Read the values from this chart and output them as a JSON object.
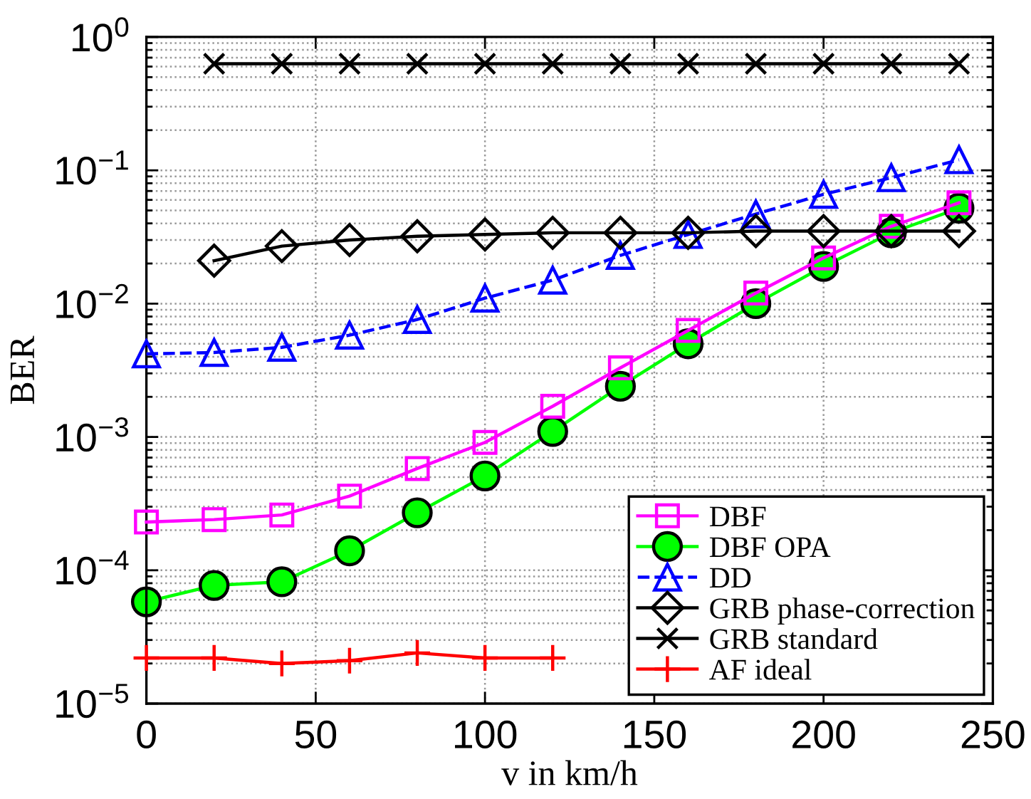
{
  "chart_data": {
    "type": "line",
    "xlabel": "v in km/h",
    "ylabel": "BER",
    "series": [
      {
        "name": "DBF",
        "color": "#ff00ff",
        "marker": "square",
        "line_style": "solid",
        "x": [
          0,
          20,
          40,
          60,
          80,
          100,
          120,
          140,
          160,
          180,
          200,
          220,
          240
        ],
        "values": [
          0.00023,
          0.00024,
          0.00026,
          0.00036,
          0.00058,
          0.00091,
          0.0017,
          0.0033,
          0.0063,
          0.012,
          0.022,
          0.038,
          0.057
        ]
      },
      {
        "name": "DBF OPA",
        "color": "#00ff00",
        "marker": "circle",
        "line_style": "solid",
        "x": [
          0,
          20,
          40,
          60,
          80,
          100,
          120,
          140,
          160,
          180,
          200,
          220,
          240
        ],
        "values": [
          5.8e-05,
          7.7e-05,
          8.2e-05,
          0.00014,
          0.00027,
          0.00051,
          0.0011,
          0.0024,
          0.005,
          0.01,
          0.019,
          0.034,
          0.052
        ]
      },
      {
        "name": "DD",
        "color": "#0000ff",
        "marker": "triangle",
        "line_style": "dashed",
        "x": [
          0,
          20,
          40,
          60,
          80,
          100,
          120,
          140,
          160,
          180,
          200,
          220,
          240
        ],
        "values": [
          0.0042,
          0.0043,
          0.0047,
          0.0058,
          0.0076,
          0.011,
          0.015,
          0.023,
          0.033,
          0.047,
          0.066,
          0.088,
          0.12
        ]
      },
      {
        "name": "GRB phase-correction",
        "color": "#000000",
        "marker": "diamond",
        "line_style": "solid",
        "x": [
          20,
          40,
          60,
          80,
          100,
          120,
          140,
          160,
          180,
          200,
          220,
          240
        ],
        "values": [
          0.021,
          0.027,
          0.03,
          0.032,
          0.033,
          0.034,
          0.034,
          0.034,
          0.035,
          0.035,
          0.035,
          0.035
        ]
      },
      {
        "name": "GRB standard",
        "color": "#000000",
        "marker": "cross",
        "line_style": "solid",
        "x": [
          20,
          40,
          60,
          80,
          100,
          120,
          140,
          160,
          180,
          200,
          220,
          240
        ],
        "values": [
          0.63,
          0.63,
          0.63,
          0.63,
          0.63,
          0.63,
          0.63,
          0.63,
          0.63,
          0.63,
          0.63,
          0.63
        ]
      },
      {
        "name": "AF ideal",
        "color": "#ff0000",
        "marker": "plus",
        "line_style": "solid",
        "x": [
          0,
          20,
          40,
          60,
          80,
          100,
          120
        ],
        "values": [
          2.2e-05,
          2.2e-05,
          2e-05,
          2.1e-05,
          2.4e-05,
          2.2e-05,
          2.2e-05
        ]
      }
    ],
    "xlim": [
      0,
      250
    ],
    "ylim": [
      1e-05,
      1
    ],
    "xticks": [
      0,
      50,
      100,
      150,
      200,
      250
    ],
    "yticks": [
      {
        "value": 1e-05,
        "label": "10$^{−5}$"
      },
      {
        "value": 0.0001,
        "label": "10$^{−4}$"
      },
      {
        "value": 0.001,
        "label": "10$^{−3}$"
      },
      {
        "value": 0.01,
        "label": "10$^{−2}$"
      },
      {
        "value": 0.1,
        "label": "10$^{−1}$"
      },
      {
        "value": 1,
        "label": "10$^{0}$"
      }
    ],
    "log": true,
    "grid": true,
    "legend": "bottom right"
  }
}
